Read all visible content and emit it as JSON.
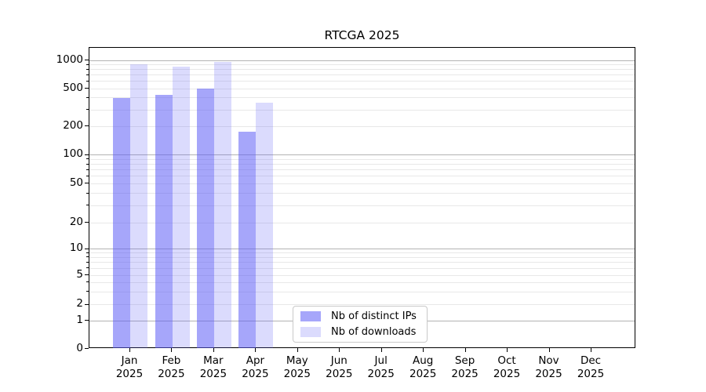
{
  "chart_data": {
    "type": "bar",
    "title": "RTCGA 2025",
    "categories": [
      "Jan",
      "Feb",
      "Mar",
      "Apr",
      "May",
      "Jun",
      "Jul",
      "Aug",
      "Sep",
      "Oct",
      "Nov",
      "Dec"
    ],
    "category_year": "2025",
    "series": [
      {
        "name": "Nb of distinct IPs",
        "key": "distinct-ips",
        "base_color": "#5a5af5",
        "alpha": 0.54,
        "values": [
          400,
          430,
          505,
          175,
          null,
          null,
          null,
          null,
          null,
          null,
          null,
          null
        ]
      },
      {
        "name": "Nb of downloads",
        "key": "downloads",
        "base_color": "#5a5af5",
        "alpha": 0.22,
        "values": [
          915,
          850,
          965,
          355,
          null,
          null,
          null,
          null,
          null,
          null,
          null,
          null
        ]
      }
    ],
    "yticks": [
      0,
      1,
      2,
      5,
      10,
      20,
      50,
      100,
      200,
      500,
      1000
    ],
    "ytick_major": [
      0,
      1,
      10,
      100,
      1000
    ],
    "minor_gridline_values": [
      3,
      4,
      6,
      7,
      8,
      9,
      30,
      40,
      60,
      70,
      80,
      90,
      300,
      400,
      600,
      700,
      800,
      900
    ],
    "y_scale": "symlog",
    "grid": true,
    "legend_position": "inside lower center",
    "colors": {
      "major_grid": "#b3b3b3",
      "minor_grid": "#e8e8e8",
      "axis": "#000000"
    }
  }
}
